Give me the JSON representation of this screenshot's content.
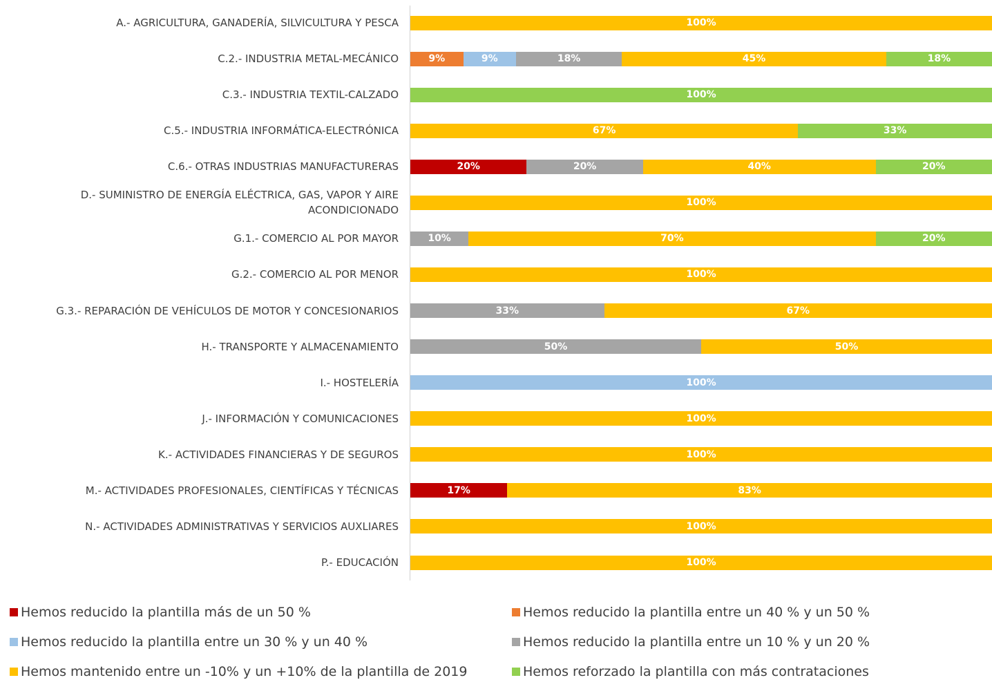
{
  "chart_data": {
    "type": "stacked-bar-horizontal",
    "categories": [
      "A.- AGRICULTURA, GANADERÍA, SILVICULTURA Y PESCA",
      "C.2.- INDUSTRIA METAL-MECÁNICO",
      "C.3.- INDUSTRIA TEXTIL-CALZADO",
      "C.5.- INDUSTRIA INFORMÁTICA-ELECTRÓNICA",
      "C.6.- OTRAS INDUSTRIAS MANUFACTURERAS",
      "D.- SUMINISTRO DE ENERGÍA ELÉCTRICA, GAS, VAPOR Y AIRE ACONDICIONADO",
      "G.1.- COMERCIO AL POR MAYOR",
      "G.2.- COMERCIO AL POR MENOR",
      "G.3.- REPARACIÓN DE VEHÍCULOS DE MOTOR Y CONCESIONARIOS",
      "H.- TRANSPORTE Y ALMACENAMIENTO",
      "I.- HOSTELERÍA",
      "J.- INFORMACIÓN Y COMUNICACIONES",
      "K.- ACTIVIDADES FINANCIERAS Y DE SEGUROS",
      "M.- ACTIVIDADES PROFESIONALES, CIENTÍFICAS Y TÉCNICAS",
      "N.- ACTIVIDADES ADMINISTRATIVAS Y SERVICIOS AUXLIARES",
      "P.- EDUCACIÓN"
    ],
    "xlim": [
      0,
      100
    ],
    "series": [
      {
        "name": "Hemos reducido la plantilla más de un 50 %",
        "color": "#c00000",
        "values": [
          null,
          null,
          null,
          null,
          20,
          null,
          null,
          null,
          null,
          null,
          null,
          null,
          null,
          16.67,
          null,
          null
        ],
        "value_labels": [
          null,
          null,
          null,
          null,
          "20%",
          null,
          null,
          null,
          null,
          null,
          null,
          null,
          null,
          "17%",
          null,
          null
        ]
      },
      {
        "name": "Hemos reducido la plantilla entre un 40 % y un 50 %",
        "color": "#ed7d31",
        "values": [
          null,
          9.09,
          null,
          null,
          null,
          null,
          null,
          null,
          null,
          null,
          null,
          null,
          null,
          null,
          null,
          null
        ],
        "value_labels": [
          null,
          "9%",
          null,
          null,
          null,
          null,
          null,
          null,
          null,
          null,
          null,
          null,
          null,
          null,
          null,
          null
        ]
      },
      {
        "name": "Hemos reducido la plantilla entre un 30 % y un 40 %",
        "color": "#9dc3e6",
        "values": [
          null,
          9.09,
          null,
          null,
          null,
          null,
          null,
          null,
          null,
          null,
          100,
          null,
          null,
          null,
          null,
          null
        ],
        "value_labels": [
          null,
          "9%",
          null,
          null,
          null,
          null,
          null,
          null,
          null,
          null,
          "100%",
          null,
          null,
          null,
          null,
          null
        ]
      },
      {
        "name": "Hemos reducido la plantilla entre un 10 % y un 20 %",
        "color": "#a5a5a5",
        "values": [
          null,
          18.18,
          null,
          null,
          20,
          null,
          10,
          null,
          33.33,
          50,
          null,
          null,
          null,
          null,
          null,
          null
        ],
        "value_labels": [
          null,
          "18%",
          null,
          null,
          "20%",
          null,
          "10%",
          null,
          "33%",
          "50%",
          null,
          null,
          null,
          null,
          null,
          null
        ]
      },
      {
        "name": "Hemos mantenido entre un -10% y un +10% de la plantilla de 2019",
        "color": "#ffc000",
        "values": [
          100,
          45.45,
          null,
          66.67,
          40,
          100,
          70,
          100,
          66.67,
          50,
          null,
          100,
          100,
          83.33,
          100,
          100
        ],
        "value_labels": [
          "100%",
          "45%",
          null,
          "67%",
          "40%",
          "100%",
          "70%",
          "100%",
          "67%",
          "50%",
          null,
          "100%",
          "100%",
          "83%",
          "100%",
          "100%"
        ]
      },
      {
        "name": "Hemos reforzado la plantilla con más contrataciones",
        "color": "#92d050",
        "values": [
          null,
          18.18,
          100,
          33.33,
          20,
          null,
          20,
          null,
          null,
          null,
          null,
          null,
          null,
          null,
          null,
          null
        ],
        "value_labels": [
          null,
          "18%",
          "100%",
          "33%",
          "20%",
          null,
          "20%",
          null,
          null,
          null,
          null,
          null,
          null,
          null,
          null,
          null
        ]
      }
    ]
  }
}
